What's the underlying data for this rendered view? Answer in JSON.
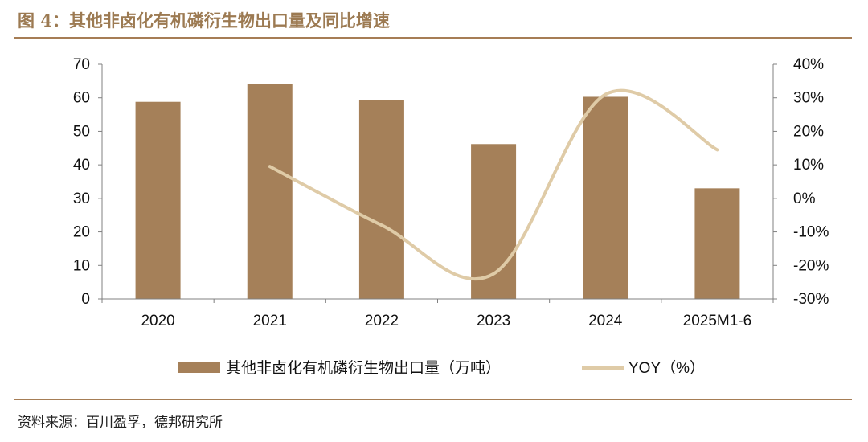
{
  "figure": {
    "title": "图 4：其他非卤化有机磷衍生物出口量及同比增速",
    "source": "资料来源：百川盈孚，德邦研究所"
  },
  "colors": {
    "bar": "#a58059",
    "line": "#dfcba7",
    "rule": "#a67d55",
    "axis": "#808080"
  },
  "chart_data": {
    "type": "bar",
    "categories": [
      "2020",
      "2021",
      "2022",
      "2023",
      "2024",
      "2025M1-6"
    ],
    "series": [
      {
        "name": "其他非卤化有机磷衍生物出口量（万吨）",
        "type": "bar",
        "axis": "left",
        "values": [
          58.8,
          64.2,
          59.3,
          46.2,
          60.3,
          33.0
        ]
      },
      {
        "name": "YOY（%）",
        "type": "line",
        "axis": "right",
        "smooth": true,
        "values": [
          null,
          9.5,
          -8.0,
          -22.5,
          31.0,
          14.5
        ]
      }
    ],
    "yleft": {
      "lim": [
        0,
        70
      ],
      "ticks": [
        "0",
        "10",
        "20",
        "30",
        "40",
        "50",
        "60",
        "70"
      ]
    },
    "yright": {
      "lim": [
        -30,
        40
      ],
      "ticks": [
        "-30%",
        "-20%",
        "-10%",
        "0%",
        "10%",
        "20%",
        "30%",
        "40%"
      ]
    },
    "legend": {
      "position": "bottom"
    },
    "grid": false
  }
}
